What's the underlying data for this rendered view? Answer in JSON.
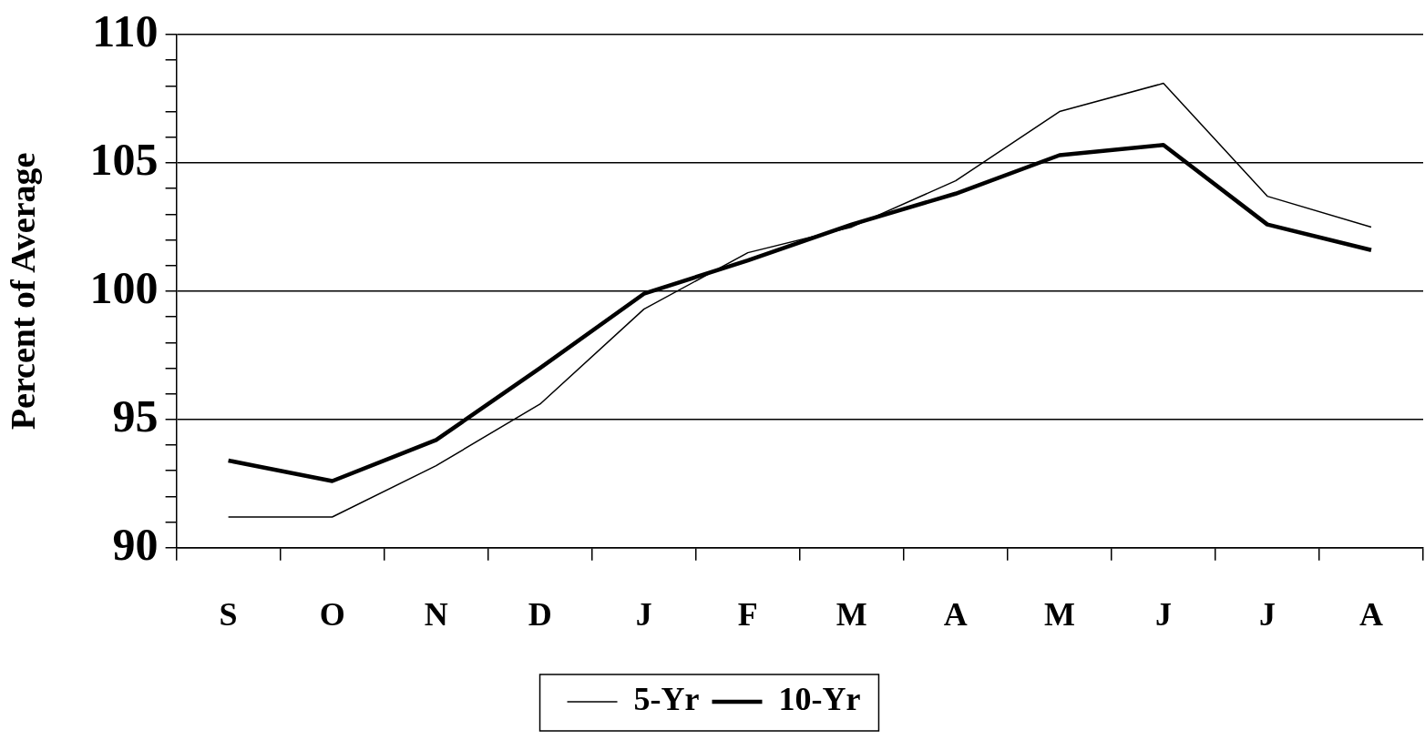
{
  "chart_data": {
    "type": "line",
    "ylabel": "Percent of Average",
    "categories": [
      "S",
      "O",
      "N",
      "D",
      "J",
      "F",
      "M",
      "A",
      "M",
      "J",
      "J",
      "A"
    ],
    "series": [
      {
        "name": "5-Yr",
        "color": "#000000",
        "values": [
          91.2,
          91.2,
          93.2,
          95.6,
          99.3,
          101.5,
          102.5,
          104.3,
          107.0,
          108.1,
          103.7,
          102.5
        ]
      },
      {
        "name": "10-Yr",
        "color": "#000000",
        "values": [
          93.4,
          92.6,
          94.2,
          97.0,
          99.9,
          101.2,
          102.6,
          103.8,
          105.3,
          105.7,
          102.6,
          101.6
        ]
      }
    ],
    "ylim": [
      90,
      110
    ],
    "yticks": [
      90,
      {
        "value": 91,
        "label": null
      },
      {
        "value": 92,
        "label": null
      },
      {
        "value": 93,
        "label": null
      },
      {
        "value": 94,
        "label": null
      },
      95,
      {
        "value": 96,
        "label": null
      },
      {
        "value": 97,
        "label": null
      },
      {
        "value": 98,
        "label": null
      },
      {
        "value": 99,
        "label": null
      },
      100,
      {
        "value": 101,
        "label": null
      },
      {
        "value": 102,
        "label": null
      },
      {
        "value": 103,
        "label": null
      },
      {
        "value": 104,
        "label": null
      },
      105,
      {
        "value": 106,
        "label": null
      },
      {
        "value": 107,
        "label": null
      },
      {
        "value": 108,
        "label": null
      },
      {
        "value": 109,
        "label": null
      },
      110
    ],
    "grid": "y",
    "legend": "bottom",
    "marker": "none",
    "line_style": "solid"
  }
}
